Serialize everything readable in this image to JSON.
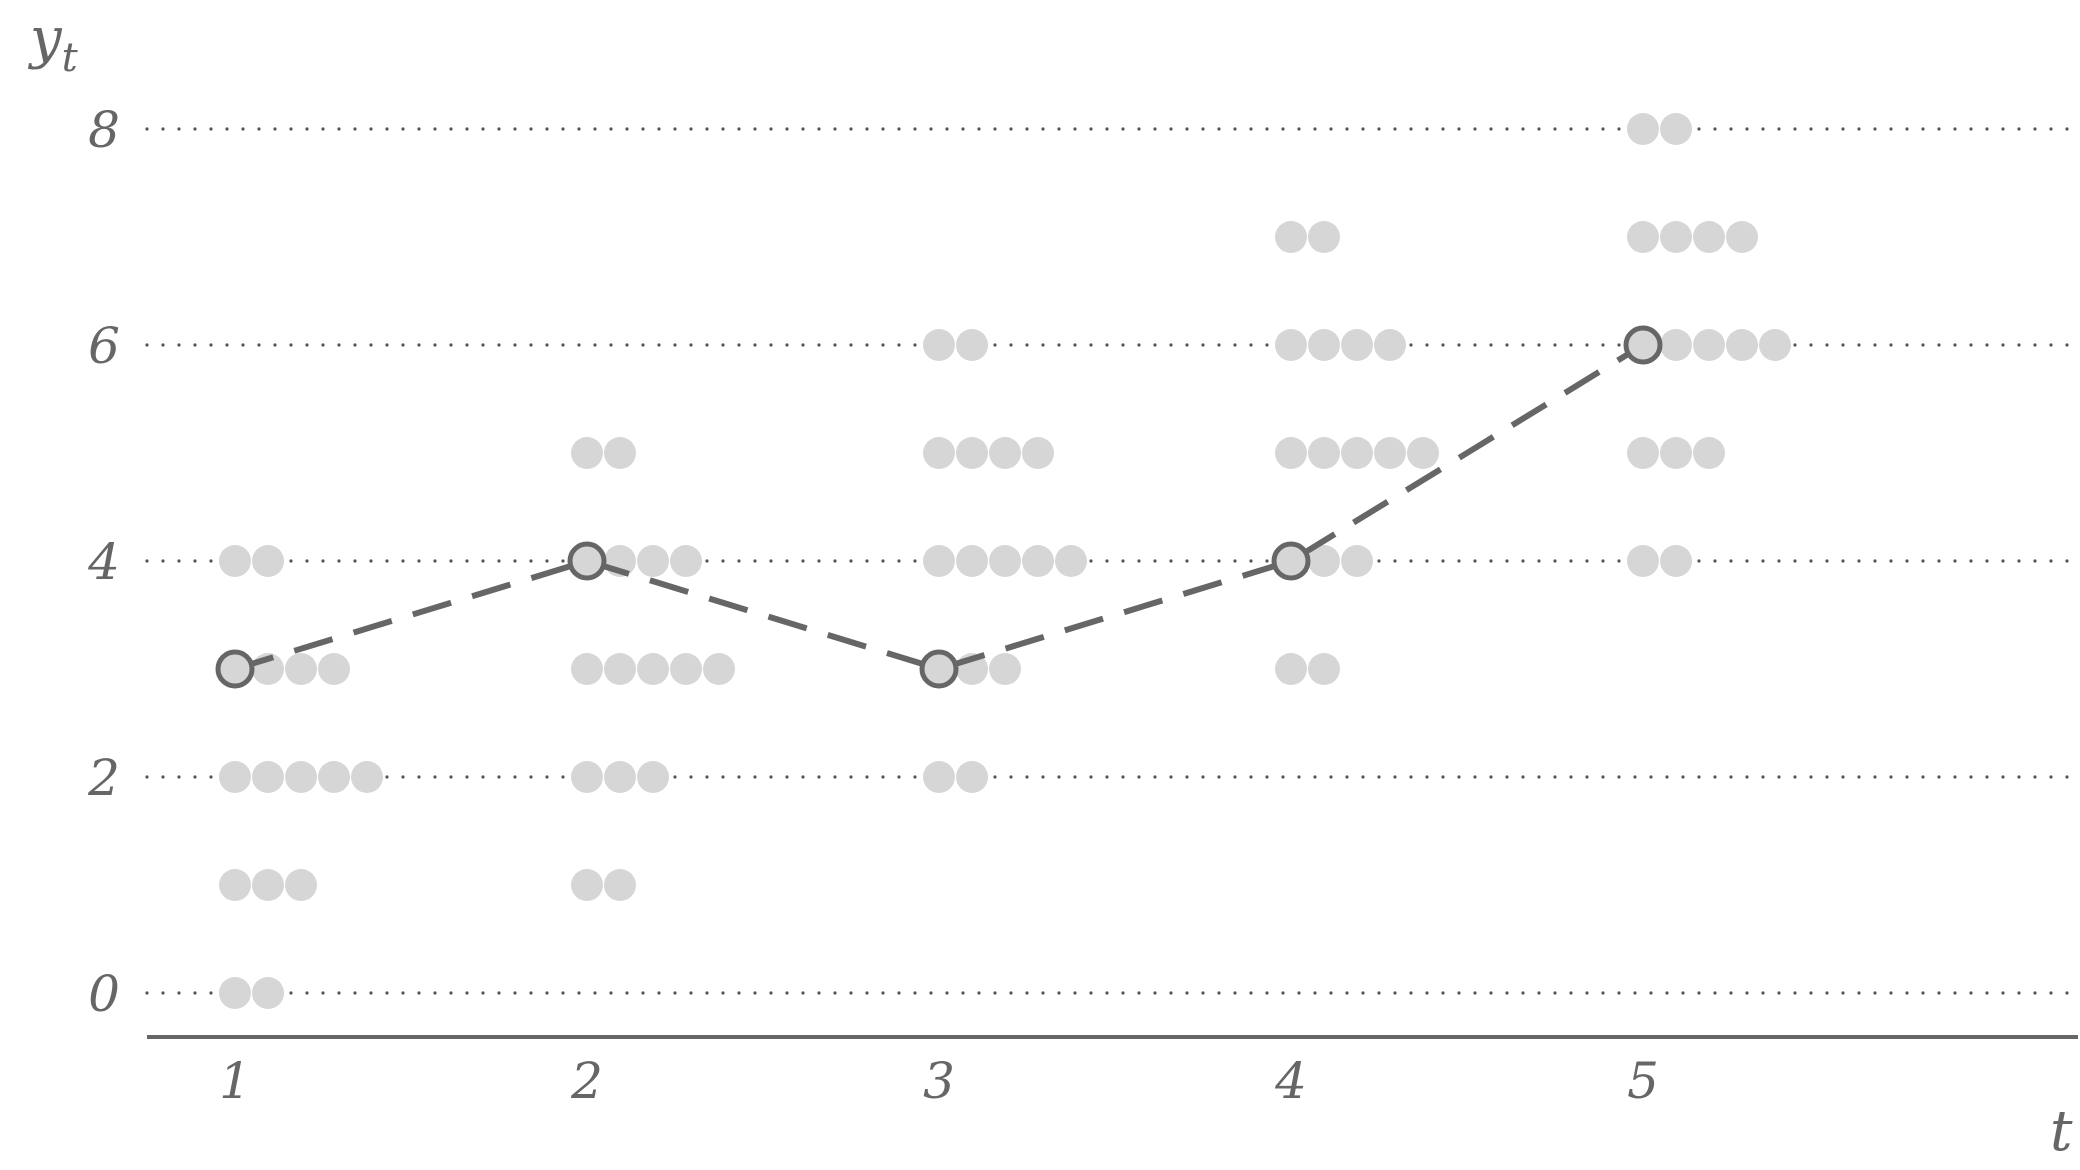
{
  "chart_data": {
    "type": "scatter",
    "xlabel": "t",
    "ylabel": "y",
    "ylabel_subscript": "t",
    "x_ticks": [
      1,
      2,
      3,
      4,
      5
    ],
    "x_tick_labels": [
      "1",
      "2",
      "3",
      "4",
      "5"
    ],
    "y_ticks": [
      0,
      2,
      4,
      6,
      8
    ],
    "y_tick_labels": [
      "0",
      "2",
      "4",
      "6",
      "8"
    ],
    "ylim": [
      -0.4,
      8
    ],
    "xlim": [
      0.25,
      6.75
    ],
    "grid": "horizontal dotted at even y values",
    "distribution_counts": [
      {
        "t": 1,
        "counts": {
          "0": 2,
          "1": 3,
          "2": 5,
          "3": 4,
          "4": 2
        }
      },
      {
        "t": 2,
        "counts": {
          "1": 2,
          "2": 3,
          "3": 5,
          "4": 4,
          "5": 2
        }
      },
      {
        "t": 3,
        "counts": {
          "2": 2,
          "3": 3,
          "4": 5,
          "5": 4,
          "6": 2
        }
      },
      {
        "t": 4,
        "counts": {
          "3": 2,
          "4": 3,
          "5": 5,
          "6": 4,
          "7": 2
        }
      },
      {
        "t": 5,
        "counts": {
          "4": 2,
          "5": 3,
          "6": 5,
          "7": 4,
          "8": 2
        }
      }
    ],
    "path": {
      "x": [
        1,
        2,
        3,
        4,
        5
      ],
      "y": [
        3,
        4,
        3,
        4,
        6
      ],
      "style": "dashed"
    },
    "colors": {
      "dots": "#d6d6d6",
      "path": "#666666",
      "path_marker_fill": "#d6d6d6",
      "grid": "#555555",
      "axis": "#666666",
      "text": "#666666"
    }
  }
}
